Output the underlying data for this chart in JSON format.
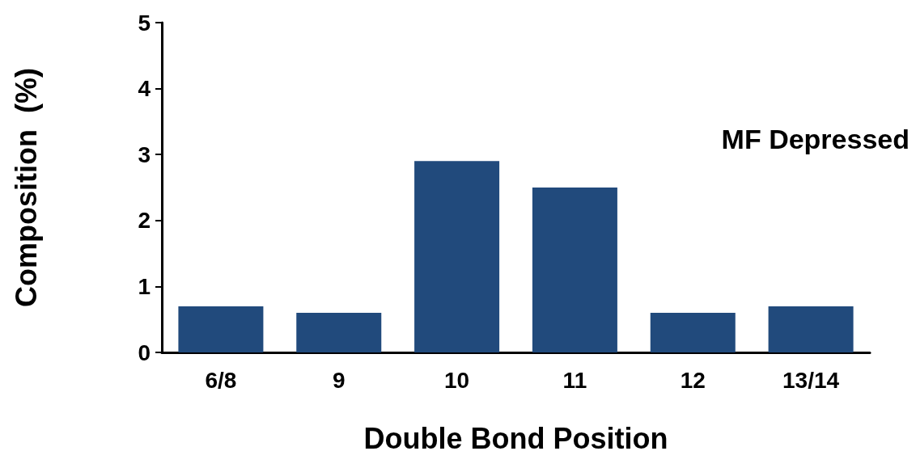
{
  "chart_data": {
    "type": "bar",
    "categories": [
      "6/8",
      "9",
      "10",
      "11",
      "12",
      "13/14"
    ],
    "values": [
      0.7,
      0.6,
      2.9,
      2.5,
      0.6,
      0.7
    ],
    "color": "#214a7c",
    "xlabel": "Double Bond Position",
    "ylabel": "Composition  (%)",
    "ylim": [
      0,
      5
    ],
    "yticks": [
      0,
      1,
      2,
      3,
      4,
      5
    ],
    "grid": false,
    "annotations": [
      "MF Depressed"
    ]
  }
}
